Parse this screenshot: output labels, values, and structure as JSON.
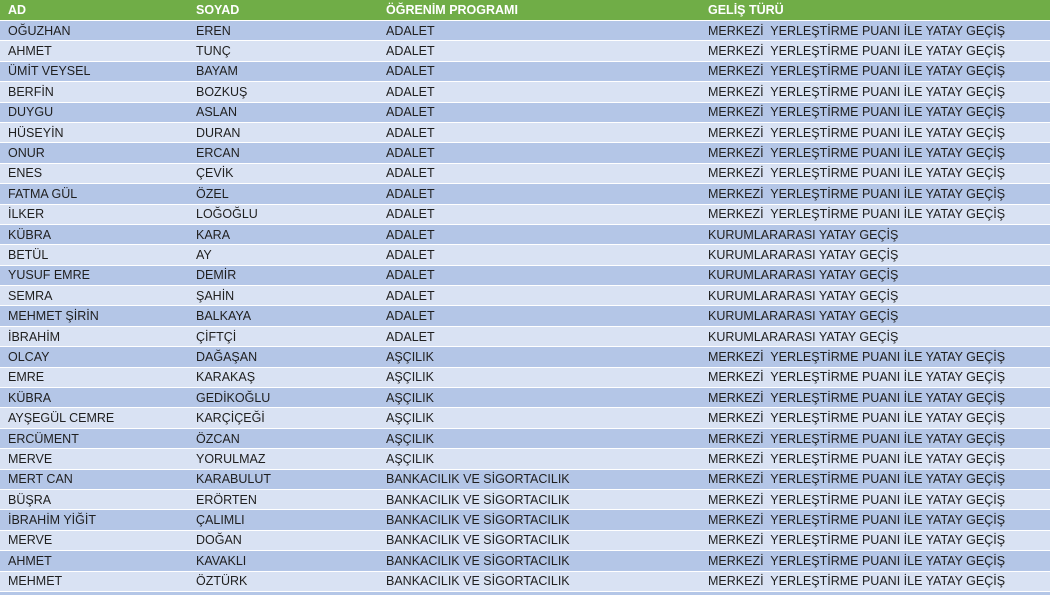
{
  "colors": {
    "header_bg": "#70AD47",
    "header_text": "#FFFFFF",
    "row_odd": "#B4C6E7",
    "row_even": "#D9E2F3",
    "text": "#1F1F1F",
    "separator": "#FFFFFF"
  },
  "table": {
    "columns": [
      {
        "key": "ad",
        "label": "AD"
      },
      {
        "key": "soyad",
        "label": "SOYAD"
      },
      {
        "key": "program",
        "label": "ÖĞRENİM PROGRAMI"
      },
      {
        "key": "gelis",
        "label": "GELİŞ TÜRÜ"
      }
    ],
    "rows": [
      {
        "ad": "OĞUZHAN",
        "soyad": "EREN",
        "program": "ADALET",
        "gelis": "MERKEZİ  YERLEŞTİRME PUANI İLE YATAY GEÇİŞ"
      },
      {
        "ad": "AHMET",
        "soyad": "TUNÇ",
        "program": "ADALET",
        "gelis": "MERKEZİ  YERLEŞTİRME PUANI İLE YATAY GEÇİŞ"
      },
      {
        "ad": "ÜMİT VEYSEL",
        "soyad": "BAYAM",
        "program": "ADALET",
        "gelis": "MERKEZİ  YERLEŞTİRME PUANI İLE YATAY GEÇİŞ"
      },
      {
        "ad": "BERFİN",
        "soyad": "BOZKUŞ",
        "program": "ADALET",
        "gelis": "MERKEZİ  YERLEŞTİRME PUANI İLE YATAY GEÇİŞ"
      },
      {
        "ad": "DUYGU",
        "soyad": "ASLAN",
        "program": "ADALET",
        "gelis": "MERKEZİ  YERLEŞTİRME PUANI İLE YATAY GEÇİŞ"
      },
      {
        "ad": "HÜSEYİN",
        "soyad": "DURAN",
        "program": "ADALET",
        "gelis": "MERKEZİ  YERLEŞTİRME PUANI İLE YATAY GEÇİŞ"
      },
      {
        "ad": "ONUR",
        "soyad": "ERCAN",
        "program": "ADALET",
        "gelis": "MERKEZİ  YERLEŞTİRME PUANI İLE YATAY GEÇİŞ"
      },
      {
        "ad": "ENES",
        "soyad": "ÇEVİK",
        "program": "ADALET",
        "gelis": "MERKEZİ  YERLEŞTİRME PUANI İLE YATAY GEÇİŞ"
      },
      {
        "ad": "FATMA GÜL",
        "soyad": "ÖZEL",
        "program": "ADALET",
        "gelis": "MERKEZİ  YERLEŞTİRME PUANI İLE YATAY GEÇİŞ"
      },
      {
        "ad": "İLKER",
        "soyad": "LOĞOĞLU",
        "program": "ADALET",
        "gelis": "MERKEZİ  YERLEŞTİRME PUANI İLE YATAY GEÇİŞ"
      },
      {
        "ad": "KÜBRA",
        "soyad": "KARA",
        "program": "ADALET",
        "gelis": "KURUMLARARASI YATAY GEÇİŞ"
      },
      {
        "ad": "BETÜL",
        "soyad": "AY",
        "program": "ADALET",
        "gelis": "KURUMLARARASI YATAY GEÇİŞ"
      },
      {
        "ad": "YUSUF EMRE",
        "soyad": "DEMİR",
        "program": "ADALET",
        "gelis": "KURUMLARARASI YATAY GEÇİŞ"
      },
      {
        "ad": "SEMRA",
        "soyad": "ŞAHİN",
        "program": "ADALET",
        "gelis": "KURUMLARARASI YATAY GEÇİŞ"
      },
      {
        "ad": "MEHMET ŞİRİN",
        "soyad": "BALKAYA",
        "program": "ADALET",
        "gelis": "KURUMLARARASI YATAY GEÇİŞ"
      },
      {
        "ad": "İBRAHİM",
        "soyad": "ÇİFTÇİ",
        "program": "ADALET",
        "gelis": "KURUMLARARASI YATAY GEÇİŞ"
      },
      {
        "ad": "OLCAY",
        "soyad": "DAĞAŞAN",
        "program": "AŞÇILIK",
        "gelis": "MERKEZİ  YERLEŞTİRME PUANI İLE YATAY GEÇİŞ"
      },
      {
        "ad": "EMRE",
        "soyad": "KARAKAŞ",
        "program": "AŞÇILIK",
        "gelis": "MERKEZİ  YERLEŞTİRME PUANI İLE YATAY GEÇİŞ"
      },
      {
        "ad": "KÜBRA",
        "soyad": "GEDİKOĞLU",
        "program": "AŞÇILIK",
        "gelis": "MERKEZİ  YERLEŞTİRME PUANI İLE YATAY GEÇİŞ"
      },
      {
        "ad": "AYŞEGÜL CEMRE",
        "soyad": "KARÇİÇEĞİ",
        "program": "AŞÇILIK",
        "gelis": "MERKEZİ  YERLEŞTİRME PUANI İLE YATAY GEÇİŞ"
      },
      {
        "ad": "ERCÜMENT",
        "soyad": "ÖZCAN",
        "program": "AŞÇILIK",
        "gelis": "MERKEZİ  YERLEŞTİRME PUANI İLE YATAY GEÇİŞ"
      },
      {
        "ad": "MERVE",
        "soyad": "YORULMAZ",
        "program": "AŞÇILIK",
        "gelis": "MERKEZİ  YERLEŞTİRME PUANI İLE YATAY GEÇİŞ"
      },
      {
        "ad": "MERT CAN",
        "soyad": "KARABULUT",
        "program": "BANKACILIK VE SİGORTACILIK",
        "gelis": "MERKEZİ  YERLEŞTİRME PUANI İLE YATAY GEÇİŞ"
      },
      {
        "ad": "BÜŞRA",
        "soyad": "ERÖRTEN",
        "program": "BANKACILIK VE SİGORTACILIK",
        "gelis": "MERKEZİ  YERLEŞTİRME PUANI İLE YATAY GEÇİŞ"
      },
      {
        "ad": "İBRAHİM YİĞİT",
        "soyad": "ÇALIMLI",
        "program": "BANKACILIK VE SİGORTACILIK",
        "gelis": "MERKEZİ  YERLEŞTİRME PUANI İLE YATAY GEÇİŞ"
      },
      {
        "ad": "MERVE",
        "soyad": "DOĞAN",
        "program": "BANKACILIK VE SİGORTACILIK",
        "gelis": "MERKEZİ  YERLEŞTİRME PUANI İLE YATAY GEÇİŞ"
      },
      {
        "ad": "AHMET",
        "soyad": "KAVAKLI",
        "program": "BANKACILIK VE SİGORTACILIK",
        "gelis": "MERKEZİ  YERLEŞTİRME PUANI İLE YATAY GEÇİŞ"
      },
      {
        "ad": "MEHMET",
        "soyad": "ÖZTÜRK",
        "program": "BANKACILIK VE SİGORTACILIK",
        "gelis": "MERKEZİ  YERLEŞTİRME PUANI İLE YATAY GEÇİŞ"
      }
    ]
  }
}
